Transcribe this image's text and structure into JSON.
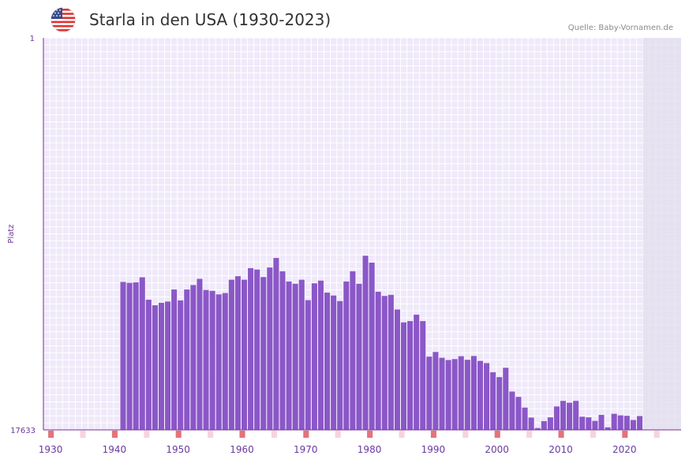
{
  "header": {
    "title": "Starla in den USA (1930-2023)",
    "source": "Quelle: Baby-Vornamen.de",
    "flag_icon": "us-flag-icon"
  },
  "colors": {
    "bar": "#8b57c8",
    "plot_bg": "#efe9fa",
    "grid": "#ffffff",
    "shade": "#e2deed",
    "axis": "#7a2e8e",
    "decade_marker": "#e4737a",
    "half_decade_marker": "#f7d3dc"
  },
  "chart_data": {
    "type": "bar",
    "title": "Starla in den USA (1930-2023)",
    "xlabel": "",
    "ylabel": "Platz",
    "y_axis_inverted": true,
    "ylim": [
      1,
      17633
    ],
    "y_tick_labels": [
      "1",
      "17633"
    ],
    "x_range": [
      1929,
      2029
    ],
    "x_ticks": [
      1930,
      1940,
      1950,
      1960,
      1970,
      1980,
      1990,
      2000,
      2010,
      2020
    ],
    "years": [
      1941,
      1942,
      1943,
      1944,
      1945,
      1946,
      1947,
      1948,
      1949,
      1950,
      1951,
      1952,
      1953,
      1954,
      1955,
      1956,
      1957,
      1958,
      1959,
      1960,
      1961,
      1962,
      1963,
      1964,
      1965,
      1966,
      1967,
      1968,
      1969,
      1970,
      1971,
      1972,
      1973,
      1974,
      1975,
      1976,
      1977,
      1978,
      1979,
      1980,
      1981,
      1982,
      1983,
      1984,
      1985,
      1986,
      1987,
      1988,
      1989,
      1990,
      1991,
      1992,
      1993,
      1994,
      1995,
      1996,
      1997,
      1998,
      1999,
      2000,
      2001,
      2002,
      2003,
      2004,
      2005,
      2006,
      2007,
      2008,
      2009,
      2010,
      2011,
      2012,
      2013,
      2014,
      2015,
      2016,
      2017,
      2018,
      2019,
      2020,
      2021,
      2022
    ],
    "ranks": [
      10980,
      11020,
      11000,
      10770,
      11780,
      12030,
      11920,
      11860,
      11320,
      11810,
      11320,
      11120,
      10840,
      11340,
      11380,
      11540,
      11480,
      10880,
      10720,
      10880,
      10360,
      10420,
      10760,
      10330,
      9900,
      10500,
      10960,
      11060,
      10880,
      11800,
      11040,
      10920,
      11460,
      11590,
      11840,
      10960,
      10500,
      11060,
      9800,
      10110,
      11420,
      11610,
      11560,
      12220,
      12800,
      12740,
      12450,
      12740,
      14340,
      14130,
      14390,
      14490,
      14450,
      14320,
      14480,
      14310,
      14530,
      14630,
      15040,
      15260,
      14840,
      15910,
      16150,
      16630,
      17080,
      17550,
      17240,
      17070,
      16580,
      16330,
      16410,
      16330,
      17040,
      17070,
      17230,
      16960,
      17520,
      16910,
      16980,
      17000,
      17190,
      17010
    ],
    "shaded_years": [
      2023,
      2029
    ]
  }
}
